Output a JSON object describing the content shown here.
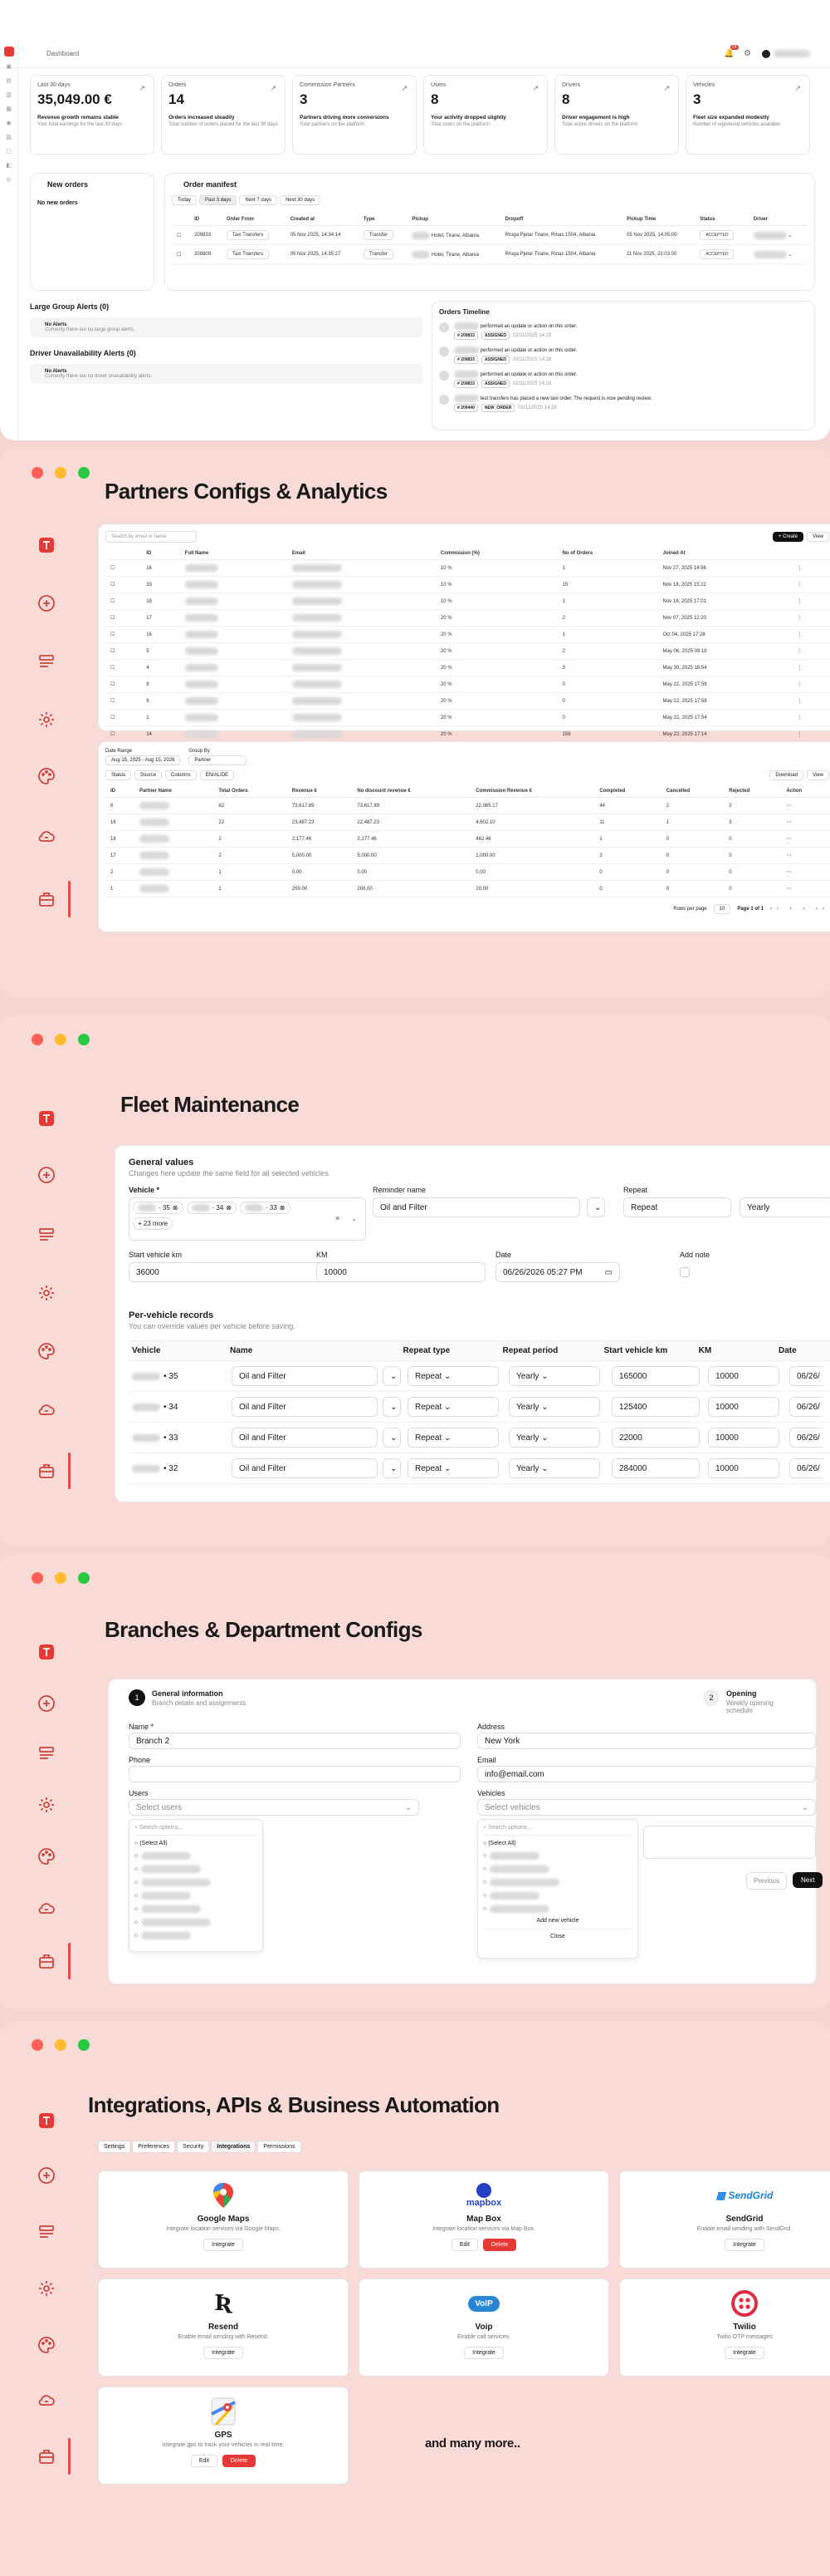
{
  "dashboard": {
    "breadcrumb": "Dashboard",
    "notif_count": "24",
    "kpis": [
      {
        "title": "Last 30 days",
        "value": "35,049.00 €",
        "headline": "Revenue growth remains stable",
        "sub": "Your total earnings for the last 30 days"
      },
      {
        "title": "Orders",
        "value": "14",
        "headline": "Orders increased steadily",
        "sub": "Total number of orders placed for the last 30 days"
      },
      {
        "title": "Commission Partners",
        "value": "3",
        "headline": "Partners driving more conversions",
        "sub": "Total partners on the platform"
      },
      {
        "title": "Users",
        "value": "8",
        "headline": "Your activity dropped slightly",
        "sub": "Total users on the platform"
      },
      {
        "title": "Drivers",
        "value": "8",
        "headline": "Driver engagement is high",
        "sub": "Total active drivers on the platform"
      },
      {
        "title": "Vehicles",
        "value": "3",
        "headline": "Fleet size expanded modestly",
        "sub": "Number of registered vehicles available"
      }
    ],
    "new_orders": {
      "title": "New orders",
      "empty": "No new orders"
    },
    "manifest": {
      "title": "Order manifest",
      "filters": [
        "Today",
        "Past 3 days",
        "Next 7 days",
        "Next 30 days"
      ],
      "headers": [
        "ID",
        "Order From",
        "Created at",
        "Type",
        "Pickup",
        "Dropoff",
        "Pickup Time",
        "Status",
        "Driver"
      ],
      "rows": [
        {
          "id": "209833",
          "from": "Taxi Transfers",
          "created": "05 Nov 2025, 14:34:14",
          "type": "Transfer",
          "pickup": "Hotel, Tirane, Albania",
          "dropoff": "Rruga Pjetar Tirane, Rinas 1504, Albania",
          "time": "05 Nov 2025, 14:05:00",
          "status": "ACCEPTED"
        },
        {
          "id": "209809",
          "from": "Taxi Transfers",
          "created": "05 Nov 2025, 14:35:27",
          "type": "Transfer",
          "pickup": "Hotel, Tirane, Albania",
          "dropoff": "Rruga Pjetar Tirane, Rinas 1504, Albania",
          "time": "11 Nov 2025, 23:03:00",
          "status": "ACCEPTED"
        }
      ]
    },
    "large_group": {
      "title": "Large Group Alerts (0)",
      "alert_title": "No Alerts",
      "alert_sub": "Currently there are no large group alerts."
    },
    "driver_alerts": {
      "title": "Driver Unavailability Alerts (0)",
      "alert_title": "No Alerts",
      "alert_sub": "Currently there are no driver unavailability alerts."
    },
    "timeline": {
      "title": "Orders Timeline",
      "items": [
        {
          "text": "performed an update or action on this order.",
          "order": "# 209833",
          "status": "ASSIGNED",
          "date": "02/11/2025 14:28"
        },
        {
          "text": "performed an update or action on this order.",
          "order": "# 209833",
          "status": "ASSIGNED",
          "date": "02/11/2025 14:28"
        },
        {
          "text": "performed an update or action on this order.",
          "order": "# 209833",
          "status": "ASSIGNED",
          "date": "02/11/2025 14:28"
        },
        {
          "text": "test transfers has placed a new taxi order. The request is now pending review.",
          "order": "# 209440",
          "status": "NEW_ORDER",
          "date": "02/11/2025 14:28"
        }
      ]
    }
  },
  "partners": {
    "title": "Partners  Configs & Analytics",
    "search_placeholder": "Search by email or name",
    "create_label": "+ Create",
    "view_label": "View",
    "headers": [
      "ID",
      "Full Name",
      "Email",
      "Commission (%)",
      "No of Orders",
      "Joined At"
    ],
    "rows": [
      {
        "id": "16",
        "commission": "10 %",
        "orders": "1",
        "joined": "Nov 27, 2025 14:56"
      },
      {
        "id": "33",
        "commission": "10 %",
        "orders": "15",
        "joined": "Nov 18, 2025 15:22"
      },
      {
        "id": "18",
        "commission": "10 %",
        "orders": "1",
        "joined": "Nov 18, 2025 17:01"
      },
      {
        "id": "17",
        "commission": "20 %",
        "orders": "2",
        "joined": "Nov 07, 2025 12:20"
      },
      {
        "id": "16",
        "commission": "20 %",
        "orders": "1",
        "joined": "Oct 04, 2025 17:28"
      },
      {
        "id": "5",
        "commission": "20 %",
        "orders": "2",
        "joined": "May 06, 2025 09:16"
      },
      {
        "id": "4",
        "commission": "20 %",
        "orders": "3",
        "joined": "May 30, 2025 18:54"
      },
      {
        "id": "8",
        "commission": "20 %",
        "orders": "0",
        "joined": "May 22, 2025 17:59"
      },
      {
        "id": "9",
        "commission": "20 %",
        "orders": "0",
        "joined": "May 22, 2025 17:58"
      },
      {
        "id": "1",
        "commission": "20 %",
        "orders": "0",
        "joined": "May 22, 2025 17:54"
      },
      {
        "id": "14",
        "commission": "20 %",
        "orders": "156",
        "joined": "May 22, 2025 17:14"
      }
    ],
    "rows_per_page": "Rows per page",
    "per_page": "10",
    "page_info": "Page 1 of 1",
    "analytics": {
      "date_range_label": "Date Range",
      "date_range": "Aug 15, 2025 - Aug 15, 2026",
      "group_by_label": "Group By",
      "group_by": "Partner",
      "chips": [
        "Status",
        "Source",
        "Columns",
        "EN/AL/DE"
      ],
      "download": "Download",
      "view": "View",
      "headers": [
        "ID",
        "Partner Name",
        "Total Orders",
        "Revenue €",
        "No discount revenue €",
        "Commission Revenue €",
        "Completed",
        "Cancelled",
        "Rejected",
        "Action"
      ],
      "rows": [
        {
          "id": "6",
          "orders": "62",
          "rev": "73,617.89",
          "nodisc": "73,617.89",
          "comm": "22,085.17",
          "completed": "44",
          "cancelled": "2",
          "rejected": "2"
        },
        {
          "id": "16",
          "orders": "22",
          "rev": "23,487.23",
          "nodisc": "22,487.23",
          "comm": "4,602.10",
          "completed": "11",
          "cancelled": "1",
          "rejected": "3"
        },
        {
          "id": "18",
          "orders": "2",
          "rev": "2,177.46",
          "nodisc": "2,177.46",
          "comm": "462.46",
          "completed": "1",
          "cancelled": "0",
          "rejected": "0"
        },
        {
          "id": "17",
          "orders": "2",
          "rev": "5,000.00",
          "nodisc": "5,000.00",
          "comm": "1,000.00",
          "completed": "2",
          "cancelled": "0",
          "rejected": "0"
        },
        {
          "id": "2",
          "orders": "1",
          "rev": "0.00",
          "nodisc": "0.00",
          "comm": "0.00",
          "completed": "0",
          "cancelled": "0",
          "rejected": "0"
        },
        {
          "id": "1",
          "orders": "1",
          "rev": "200.00",
          "nodisc": "200.00",
          "comm": "20.00",
          "completed": "0",
          "cancelled": "0",
          "rejected": "0"
        }
      ]
    }
  },
  "fleet": {
    "title": "Fleet Maintenance",
    "section_title": "General values",
    "section_sub": "Changes here update the same field for all selected vehicles.",
    "vehicle_label": "Vehicle *",
    "vehicle_chips": [
      "35",
      "34",
      "33"
    ],
    "more_chip": "+ 23 more",
    "reminder_label": "Reminder name",
    "reminder_value": "Oil and Filter",
    "repeat_label": "Repeat",
    "repeat_value": "Repeat",
    "period_value": "Yearly",
    "startkm_label": "Start vehicle km",
    "startkm_value": "36000",
    "km_label": "KM",
    "km_value": "10000",
    "date_label": "Date",
    "date_value": "06/26/2026 05:27 PM",
    "note_label": "Add note",
    "per_title": "Per-vehicle records",
    "per_sub": "You can override values per vehicle before saving.",
    "headers": [
      "Vehicle",
      "Name",
      "Repeat type",
      "Repeat period",
      "Start vehicle km",
      "KM",
      "Date"
    ],
    "rows": [
      {
        "vehicle": "• 35",
        "name": "Oil and Filter",
        "rtype": "Repeat",
        "period": "Yearly",
        "startkm": "165000",
        "km": "10000",
        "date": "06/26/"
      },
      {
        "vehicle": "• 34",
        "name": "Oil and Filter",
        "rtype": "Repeat",
        "period": "Yearly",
        "startkm": "125400",
        "km": "10000",
        "date": "06/26/"
      },
      {
        "vehicle": "• 33",
        "name": "Oil and Filter",
        "rtype": "Repeat",
        "period": "Yearly",
        "startkm": "22000",
        "km": "10000",
        "date": "06/26/"
      },
      {
        "vehicle": "• 32",
        "name": "Oil and Filter",
        "rtype": "Repeat",
        "period": "Yearly",
        "startkm": "284000",
        "km": "10000",
        "date": "06/26/"
      }
    ]
  },
  "branches": {
    "title": "Branches & Department Configs",
    "step1_num": "1",
    "step1_title": "General information",
    "step1_sub": "Branch details and assignments",
    "step2_num": "2",
    "step2_title": "Opening",
    "step2_sub": "Weekly opening schedule",
    "name_label": "Name *",
    "name_value": "Branch 2",
    "address_label": "Address",
    "address_value": "New York",
    "phone_label": "Phone",
    "email_label": "Email",
    "email_value": "info@email.com",
    "users_label": "Users",
    "users_placeholder": "Select users",
    "vehicles_label": "Vehicles",
    "vehicles_placeholder": "Select vehicles",
    "search_placeholder": "Search options...",
    "select_all": "(Select All)",
    "add_vehicle": "Add new vehicle",
    "close": "Close",
    "previous": "Previous",
    "next": "Next"
  },
  "integrations": {
    "title": "Integrations, APIs & Business Automation",
    "tabs": [
      "Settings",
      "Preferences",
      "Security",
      "Integrations",
      "Permissions"
    ],
    "cards": [
      {
        "name": "Google Maps",
        "desc": "Integrate location services via Google Maps.",
        "btn1": "Integrate"
      },
      {
        "name": "Map Box",
        "desc": "Integrate location services via Map Box.",
        "btn1": "Edit",
        "btn2": "Delete",
        "logo_text": "mapbox"
      },
      {
        "name": "SendGrid",
        "desc": "Enable email sending with SendGrid.",
        "btn1": "Integrate",
        "logo_text": "SendGrid"
      },
      {
        "name": "Resend",
        "desc": "Enable email sending with Resend.",
        "btn1": "Integrate"
      },
      {
        "name": "Voip",
        "desc": "Enable call services.",
        "btn1": "Integrate",
        "logo_text": "VoIP"
      },
      {
        "name": "Twilio",
        "desc": "Twilio OTP messages",
        "btn1": "Integrate"
      },
      {
        "name": "GPS",
        "desc": "Integrate gps to track your vehicles in real time.",
        "btn1": "Edit",
        "btn2": "Delete"
      }
    ],
    "more": "and many more.."
  },
  "colors": {
    "accent": "#e53935",
    "panel": "#f8dbd7",
    "icon": "#c8463f"
  }
}
